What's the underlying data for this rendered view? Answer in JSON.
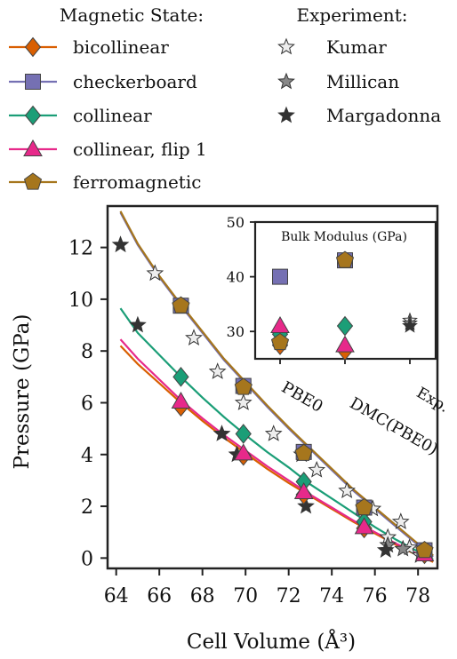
{
  "chart_data": [
    {
      "type": "scatter",
      "xlabel": "Cell Volume (Å³)",
      "ylabel": "Pressure (GPa)",
      "xlim": [
        63.6,
        78.9
      ],
      "ylim": [
        -0.4,
        13.6
      ],
      "xticks": [
        64,
        66,
        68,
        70,
        72,
        74,
        76,
        78
      ],
      "yticks": [
        0,
        2,
        4,
        6,
        8,
        10,
        12
      ],
      "legend_left_title": "Magnetic State:",
      "legend_right_title": "Experiment:",
      "region_labels": [
        "PBE0",
        "DMC(PBE0)",
        "Exp."
      ],
      "series": [
        {
          "name": "bicollinear",
          "color": "#d95f02",
          "marker": "diamond",
          "curve_x": [
            64.2,
            65,
            66,
            67,
            68,
            69,
            70,
            71,
            72,
            73,
            74,
            75,
            76,
            77,
            78,
            78.7
          ],
          "curve_y": [
            8.2,
            7.5,
            6.75,
            6.0,
            5.3,
            4.65,
            4.05,
            3.45,
            2.9,
            2.4,
            1.9,
            1.4,
            0.95,
            0.5,
            0.1,
            -0.15
          ],
          "points_x": [
            67.0,
            69.9,
            72.7,
            75.5,
            78.3
          ],
          "points_y": [
            5.85,
            3.95,
            2.45,
            1.15,
            0.15
          ]
        },
        {
          "name": "checkerboard",
          "color": "#7570b3",
          "marker": "square",
          "curve_x": [
            64.2,
            65,
            66,
            67,
            68,
            69,
            70,
            71,
            72,
            73,
            74,
            75,
            76,
            77,
            78,
            78.7
          ],
          "curve_y": [
            13.35,
            12.1,
            10.85,
            9.75,
            8.7,
            7.65,
            6.75,
            5.85,
            5.0,
            4.2,
            3.4,
            2.6,
            1.9,
            1.2,
            0.5,
            0.05
          ],
          "points_x": [
            67.0,
            69.9,
            72.7,
            75.5,
            78.3
          ],
          "points_y": [
            9.75,
            6.65,
            4.1,
            1.95,
            0.3
          ]
        },
        {
          "name": "collinear",
          "color": "#1b9e77",
          "marker": "diamond",
          "curve_x": [
            64.2,
            65,
            66,
            67,
            68,
            69,
            70,
            71,
            72,
            73,
            74,
            75,
            76,
            77,
            78,
            78.7
          ],
          "curve_y": [
            9.65,
            8.7,
            7.85,
            7.0,
            6.2,
            5.45,
            4.75,
            4.1,
            3.5,
            2.85,
            2.3,
            1.75,
            1.2,
            0.7,
            0.25,
            -0.05
          ],
          "points_x": [
            67.0,
            69.9,
            72.7,
            75.5,
            78.3
          ],
          "points_y": [
            7.0,
            4.8,
            2.95,
            1.4,
            0.25
          ]
        },
        {
          "name": "collinear, flip 1",
          "color": "#e7298a",
          "marker": "triangle",
          "curve_x": [
            64.2,
            65,
            66,
            67,
            68,
            69,
            70,
            71,
            72,
            73,
            74,
            75,
            76,
            77,
            78,
            78.7
          ],
          "curve_y": [
            8.45,
            7.7,
            6.9,
            6.1,
            5.4,
            4.75,
            4.15,
            3.55,
            3.0,
            2.45,
            1.95,
            1.45,
            1.0,
            0.55,
            0.15,
            -0.1
          ],
          "points_x": [
            67.0,
            69.9,
            72.7,
            75.5,
            78.3
          ],
          "points_y": [
            6.05,
            4.05,
            2.55,
            1.2,
            0.15
          ]
        },
        {
          "name": "ferromagnetic",
          "color": "#a6761d",
          "marker": "pentagon",
          "curve_x": [
            64.2,
            65,
            66,
            67,
            68,
            69,
            70,
            71,
            72,
            73,
            74,
            75,
            76,
            77,
            78,
            78.7
          ],
          "curve_y": [
            13.4,
            12.15,
            10.9,
            9.8,
            8.75,
            7.7,
            6.8,
            5.9,
            5.05,
            4.25,
            3.45,
            2.65,
            1.95,
            1.25,
            0.55,
            0.1
          ],
          "points_x": [
            67.0,
            69.9,
            72.7,
            75.5,
            78.3
          ],
          "points_y": [
            9.75,
            6.6,
            4.05,
            1.95,
            0.3
          ]
        }
      ],
      "experiments": [
        {
          "name": "Kumar",
          "color": "#eeeeee",
          "x": [
            65.8,
            67.6,
            68.7,
            69.9,
            71.3,
            72.6,
            73.3,
            74.7,
            75.9,
            77.2,
            76.6,
            77.6,
            78.1
          ],
          "y": [
            11.0,
            8.5,
            7.2,
            6.0,
            4.8,
            4.0,
            3.4,
            2.6,
            1.9,
            1.4,
            0.8,
            0.4,
            0.1
          ]
        },
        {
          "name": "Millican",
          "color": "#888888",
          "x": [
            76.6,
            77.3
          ],
          "y": [
            0.5,
            0.35
          ]
        },
        {
          "name": "Margadonna",
          "color": "#333333",
          "x": [
            64.2,
            65.0,
            68.9,
            69.6,
            72.8,
            76.5
          ],
          "y": [
            12.1,
            9.0,
            4.8,
            4.0,
            2.0,
            0.3
          ]
        }
      ]
    },
    {
      "type": "scatter",
      "title": "Bulk Modulus (GPa)",
      "categories": [
        "PBE0",
        "DMC(PBE0)",
        "Exp."
      ],
      "ylim": [
        25,
        50
      ],
      "yticks": [
        30,
        40,
        50
      ],
      "series": [
        {
          "name": "bicollinear",
          "values": [
            27.5,
            26.5,
            null
          ]
        },
        {
          "name": "checkerboard",
          "values": [
            40,
            43,
            null
          ]
        },
        {
          "name": "collinear",
          "values": [
            29.5,
            31,
            null
          ]
        },
        {
          "name": "collinear, flip 1",
          "values": [
            31,
            27.5,
            null
          ]
        },
        {
          "name": "ferromagnetic",
          "values": [
            28,
            43,
            null
          ]
        }
      ],
      "experiments": [
        {
          "name": "Kumar",
          "values": [
            null,
            null,
            32
          ]
        },
        {
          "name": "Millican",
          "values": [
            null,
            null,
            31.5
          ]
        },
        {
          "name": "Margadonna",
          "values": [
            null,
            null,
            31
          ]
        }
      ]
    }
  ]
}
